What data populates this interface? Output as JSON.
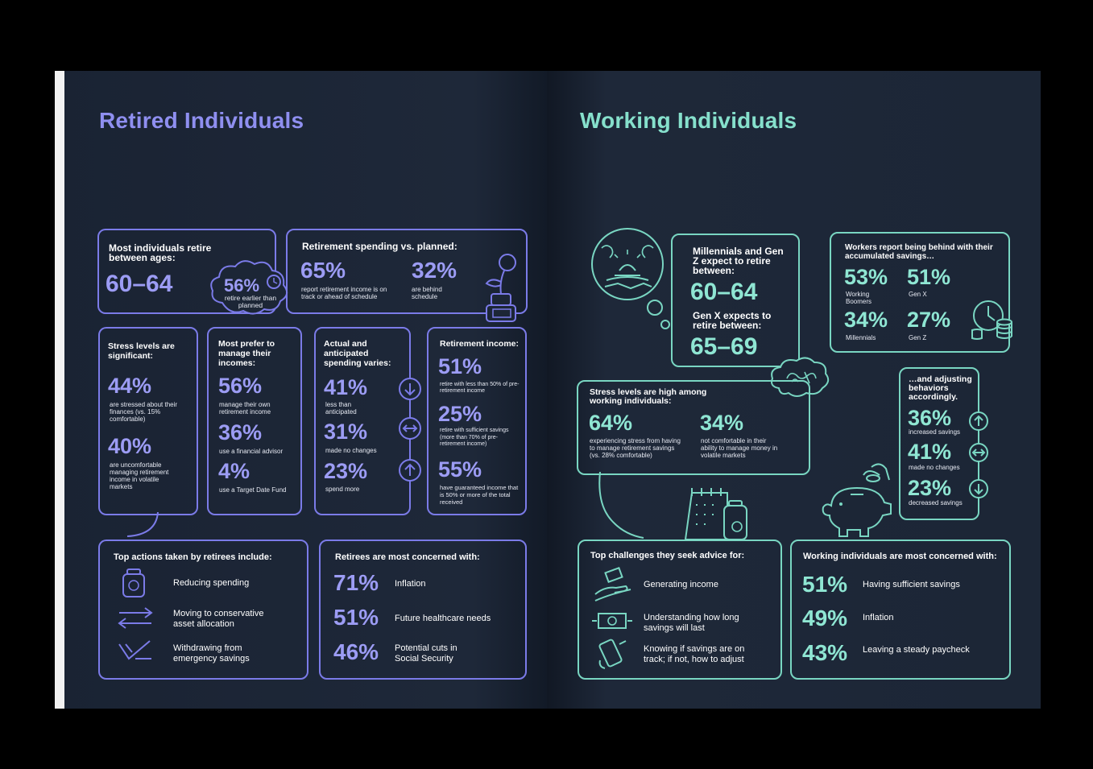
{
  "left": {
    "title": "Retired Individuals",
    "ages": {
      "heading": "Most individuals retire between ages:",
      "value": "60–64"
    },
    "early": {
      "value": "56%",
      "label": "retire earlier than planned"
    },
    "spending": {
      "heading": "Retirement spending vs. planned:",
      "a_value": "65%",
      "a_label": "report retirement income is on track or ahead of schedule",
      "b_value": "32%",
      "b_label": "are behind schedule"
    },
    "stress": {
      "heading": "Stress levels are significant:",
      "a_value": "44%",
      "a_label": "are stressed about their finances (vs. 15% comfortable)",
      "b_value": "40%",
      "b_label": "are uncomfortable managing retirement income in volatile markets"
    },
    "manage": {
      "heading": "Most prefer to manage their incomes:",
      "a_value": "56%",
      "a_label": "manage their own retirement income",
      "b_value": "36%",
      "b_label": "use a financial advisor",
      "c_value": "4%",
      "c_label": "use a Target Date Fund"
    },
    "actual": {
      "heading": "Actual and anticipated spending varies:",
      "a_value": "41%",
      "a_label": "less than anticipated",
      "b_value": "31%",
      "b_label": "made no changes",
      "c_value": "23%",
      "c_label": "spend more"
    },
    "income": {
      "heading": "Retirement income:",
      "a_value": "51%",
      "a_label": "retire with less than 50% of pre-retirement income",
      "b_value": "25%",
      "b_label": "retire with sufficient savings (more than 70% of pre-retirement income)",
      "c_value": "55%",
      "c_label": "have guaranteed income that is 50% or more of the total received"
    },
    "actions": {
      "heading": "Top actions taken by retirees include:",
      "items": [
        "Reducing spending",
        "Moving to conservative asset allocation",
        "Withdrawing from emergency savings"
      ]
    },
    "concerns": {
      "heading": "Retirees are most concerned with:",
      "items": [
        {
          "value": "71%",
          "label": "Inflation"
        },
        {
          "value": "51%",
          "label": "Future healthcare needs"
        },
        {
          "value": "46%",
          "label": "Potential cuts in Social Security"
        }
      ]
    }
  },
  "right": {
    "title": "Working Individuals",
    "expect": {
      "heading1": "Millennials and Gen Z expect to retire between:",
      "value1": "60–64",
      "heading2": "Gen X expects to retire between:",
      "value2": "65–69"
    },
    "behind": {
      "heading": "Workers report being behind with their accumulated savings…",
      "items": [
        {
          "value": "53%",
          "label": "Working Boomers"
        },
        {
          "value": "51%",
          "label": "Gen X"
        },
        {
          "value": "34%",
          "label": "Millennials"
        },
        {
          "value": "27%",
          "label": "Gen Z"
        }
      ]
    },
    "stress": {
      "heading": "Stress levels are high among working individuals:",
      "a_value": "64%",
      "a_label": "experiencing stress from having to manage retirement savings (vs. 28% comfortable)",
      "b_value": "34%",
      "b_label": "not comfortable in their ability to manage money in volatile markets"
    },
    "adjust": {
      "heading": "…and adjusting behaviors accordingly.",
      "a_value": "36%",
      "a_label": "increased savings",
      "b_value": "41%",
      "b_label": "made no changes",
      "c_value": "23%",
      "c_label": "decreased savings"
    },
    "challenges": {
      "heading": "Top challenges they seek advice for:",
      "items": [
        "Generating income",
        "Understanding how long savings will last",
        "Knowing if savings are on track; if not, how to adjust"
      ]
    },
    "concerns": {
      "heading": "Working individuals are most concerned with:",
      "items": [
        {
          "value": "51%",
          "label": "Having sufficient savings"
        },
        {
          "value": "49%",
          "label": "Inflation"
        },
        {
          "value": "43%",
          "label": "Leaving a steady paycheck"
        }
      ]
    }
  },
  "colors": {
    "background": "#000000",
    "page": "#1c2636",
    "purple": "#7b7be8",
    "teal": "#79d6c2",
    "text": "#ffffff"
  },
  "icons": [
    "clock-icon",
    "plant-jar-icon",
    "arrow-down-icon",
    "arrow-both-icon",
    "arrow-up-icon",
    "jar-icon",
    "arrows-exchange-icon",
    "checks-icon",
    "sunset-thought-icon",
    "clock-coins-icon",
    "brain-cloud-icon",
    "piggy-bank-icon",
    "calendar-jar-icon",
    "hand-money-icon",
    "cash-icon",
    "phone-money-icon"
  ]
}
